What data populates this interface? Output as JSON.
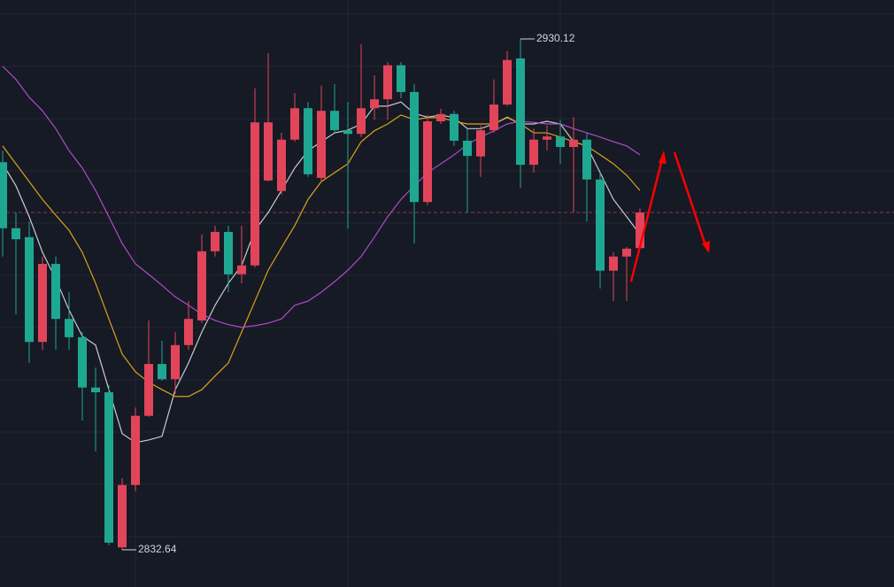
{
  "chart_data": {
    "type": "candlestick",
    "ylim": [
      2825.54,
      2937.55
    ],
    "grid": true,
    "up_color": "#e2455a",
    "down_color": "#1fa891",
    "open": [
      2906.6,
      2894.0,
      2892.3,
      2872.3,
      2887.2,
      2876.7,
      2873.2,
      2863.6,
      2862.7,
      2833.1,
      2845.0,
      2858.2,
      2868.1,
      2865.2,
      2871.7,
      2876.4,
      2889.6,
      2893.3,
      2885.2,
      2886.9,
      2903.1,
      2901.1,
      2910.9,
      2916.9,
      2903.6,
      2916.4,
      2912.7,
      2912.0,
      2916.9,
      2918.6,
      2925.1,
      2920.0,
      2899.0,
      2914.4,
      2915.8,
      2910.7,
      2907.7,
      2912.7,
      2917.6,
      2926.4,
      2906.1,
      2910.9,
      2911.5,
      2909.5,
      2910.9,
      2903.3,
      2885.9,
      2888.6,
      2890.2
    ],
    "high": [
      2908.8,
      2897.0,
      2895.3,
      2888.6,
      2888.6,
      2881.8,
      2874.2,
      2867.4,
      2864.1,
      2846.3,
      2859.8,
      2876.4,
      2872.5,
      2874.2,
      2880.1,
      2892.8,
      2894.5,
      2894.5,
      2894.5,
      2920.7,
      2927.4,
      2912.2,
      2919.8,
      2918.1,
      2921.2,
      2921.5,
      2918.1,
      2929.1,
      2923.2,
      2925.7,
      2925.7,
      2921.5,
      2915.6,
      2916.8,
      2916.4,
      2913.0,
      2913.6,
      2922.4,
      2927.8,
      2930.12,
      2913.0,
      2913.6,
      2914.7,
      2915.2,
      2912.2,
      2904.6,
      2889.4,
      2890.4,
      2897.8
    ],
    "low": [
      2888.6,
      2877.6,
      2868.3,
      2870.8,
      2870.8,
      2870.8,
      2857.3,
      2851.4,
      2833.5,
      2832.64,
      2843.8,
      2858.0,
      2864.9,
      2862.4,
      2870.8,
      2875.9,
      2888.6,
      2881.8,
      2883.5,
      2886.5,
      2903.0,
      2900.4,
      2910.5,
      2903.8,
      2902.9,
      2912.2,
      2893.9,
      2911.4,
      2914.7,
      2914.7,
      2918.8,
      2891.1,
      2898.4,
      2913.9,
      2909.7,
      2897.0,
      2903.8,
      2912.2,
      2917.3,
      2901.7,
      2904.6,
      2908.8,
      2906.3,
      2897.0,
      2895.3,
      2882.5,
      2880.1,
      2880.1,
      2889.9
    ],
    "close": [
      2894.0,
      2891.9,
      2872.3,
      2887.2,
      2876.7,
      2873.2,
      2863.6,
      2862.7,
      2834.0,
      2845.0,
      2858.2,
      2868.1,
      2865.2,
      2871.7,
      2876.7,
      2889.6,
      2893.3,
      2885.2,
      2886.9,
      2914.2,
      2914.2,
      2910.9,
      2916.9,
      2904.3,
      2916.4,
      2912.7,
      2912.0,
      2916.9,
      2918.6,
      2925.1,
      2920.0,
      2899.0,
      2914.4,
      2915.8,
      2910.7,
      2907.8,
      2912.7,
      2917.6,
      2926.1,
      2906.1,
      2910.9,
      2911.5,
      2909.5,
      2910.9,
      2903.3,
      2885.9,
      2888.6,
      2890.1,
      2897.0
    ],
    "lines": [
      {
        "color": "#c9cbd1",
        "values": [
          2906.3,
          2902.1,
          2896.2,
          2889.4,
          2884.3,
          2878.4,
          2873.4,
          2871.7,
          2863.2,
          2854.8,
          2853.1,
          2853.6,
          2854.3,
          2863.2,
          2868.3,
          2874.2,
          2879.3,
          2883.5,
          2886.9,
          2893.6,
          2897.0,
          2901.2,
          2905.5,
          2908.8,
          2910.5,
          2912.2,
          2912.7,
          2913.9,
          2917.3,
          2917.3,
          2918.1,
          2915.9,
          2915.2,
          2915.6,
          2915.1,
          2913.0,
          2913.0,
          2913.9,
          2915.2,
          2913.9,
          2913.9,
          2914.4,
          2913.9,
          2910.5,
          2909.7,
          2904.6,
          2899.5,
          2896.2,
          2892.8
        ]
      },
      {
        "color": "#d9a21b",
        "values": [
          2909.7,
          2906.3,
          2902.9,
          2899.5,
          2896.5,
          2893.6,
          2889.4,
          2883.5,
          2876.7,
          2870.0,
          2866.6,
          2864.6,
          2863.2,
          2861.9,
          2861.9,
          2863.2,
          2865.8,
          2868.3,
          2874.2,
          2880.1,
          2886.0,
          2890.3,
          2894.5,
          2899.5,
          2902.9,
          2904.6,
          2906.3,
          2910.5,
          2912.6,
          2913.9,
          2915.6,
          2914.7,
          2915.1,
          2915.1,
          2914.4,
          2913.9,
          2913.9,
          2913.9,
          2915.1,
          2913.9,
          2912.2,
          2912.2,
          2911.4,
          2910.5,
          2909.7,
          2908.0,
          2906.3,
          2904.1,
          2901.2
        ]
      },
      {
        "color": "#b04ac9",
        "values": [
          2924.9,
          2922.4,
          2919.0,
          2916.4,
          2913.0,
          2908.8,
          2905.5,
          2901.2,
          2896.2,
          2891.1,
          2887.2,
          2885.2,
          2883.1,
          2880.9,
          2879.3,
          2877.6,
          2876.4,
          2875.6,
          2875.1,
          2875.4,
          2875.9,
          2876.7,
          2879.3,
          2880.1,
          2881.8,
          2883.8,
          2886.0,
          2888.6,
          2892.3,
          2896.2,
          2899.5,
          2902.1,
          2904.6,
          2906.3,
          2908.0,
          2910.0,
          2911.4,
          2912.6,
          2913.9,
          2914.4,
          2914.2,
          2913.9,
          2913.9,
          2913.0,
          2912.2,
          2911.4,
          2910.5,
          2909.7,
          2908.0
        ]
      }
    ],
    "max_label": 2930.12,
    "min_label": 2832.64
  }
}
